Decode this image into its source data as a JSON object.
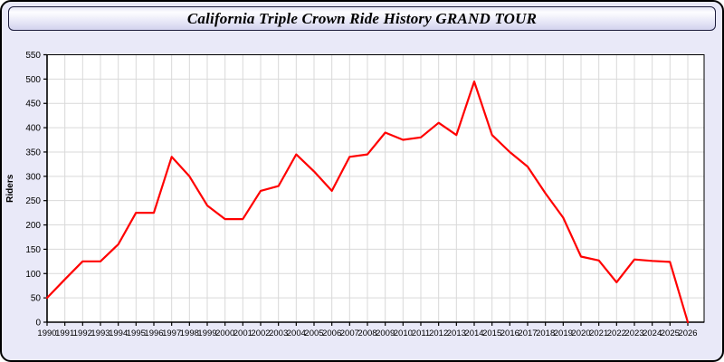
{
  "title": "California Triple Crown Ride History GRAND TOUR",
  "colors": {
    "page_background": "#e9e9f8",
    "page_border": "#000000",
    "titlebar_border": "#1d1d3d",
    "titlebar_gradient_top": "#fdfdff",
    "titlebar_gradient_bottom": "#d2d2ee",
    "plot_background": "#ffffff",
    "plot_border": "#000000",
    "gridline": "#d9d9d9",
    "axis": "#000000",
    "tick_label": "#000000",
    "line": "#ff0000"
  },
  "chart_data": {
    "type": "line",
    "title": "California Triple Crown Ride History GRAND TOUR",
    "xlabel": "",
    "ylabel": "Riders",
    "ylim": [
      0,
      550
    ],
    "ytick_step": 50,
    "grid": true,
    "legend_position": "none",
    "x": [
      1990,
      1991,
      1992,
      1993,
      1994,
      1995,
      1996,
      1997,
      1998,
      1999,
      2000,
      2001,
      2002,
      2003,
      2004,
      2005,
      2006,
      2007,
      2008,
      2009,
      2010,
      2011,
      2012,
      2013,
      2014,
      2015,
      2016,
      2017,
      2018,
      2019,
      2020,
      2021,
      2022,
      2023,
      2024,
      2025,
      2026
    ],
    "series": [
      {
        "name": "Riders",
        "color": "#ff0000",
        "values": [
          50,
          88,
          125,
          125,
          160,
          225,
          225,
          340,
          300,
          240,
          212,
          212,
          270,
          280,
          345,
          310,
          270,
          340,
          345,
          390,
          375,
          380,
          410,
          385,
          495,
          385,
          350,
          320,
          265,
          215,
          135,
          127,
          82,
          129,
          126,
          124,
          0
        ]
      }
    ]
  }
}
